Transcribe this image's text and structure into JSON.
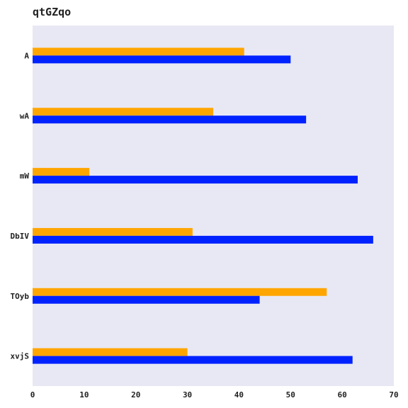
{
  "chart_data": {
    "type": "bar",
    "orientation": "horizontal",
    "title": "qtGZqo",
    "xlabel": "",
    "ylabel": "",
    "categories": [
      "A",
      "wA",
      "mW",
      "DbIV",
      "TOyb",
      "xvjS"
    ],
    "series": [
      {
        "color": "#ffa500",
        "values": [
          41,
          35,
          11,
          31,
          57,
          30
        ]
      },
      {
        "color": "#0022ff",
        "values": [
          50,
          53,
          63,
          66,
          44,
          62
        ]
      }
    ],
    "xlim": [
      0,
      70
    ],
    "xticks": [
      0,
      10,
      20,
      30,
      40,
      50,
      60,
      70
    ],
    "grid": false,
    "legend": "none",
    "background_color": "#e8e8f4"
  }
}
